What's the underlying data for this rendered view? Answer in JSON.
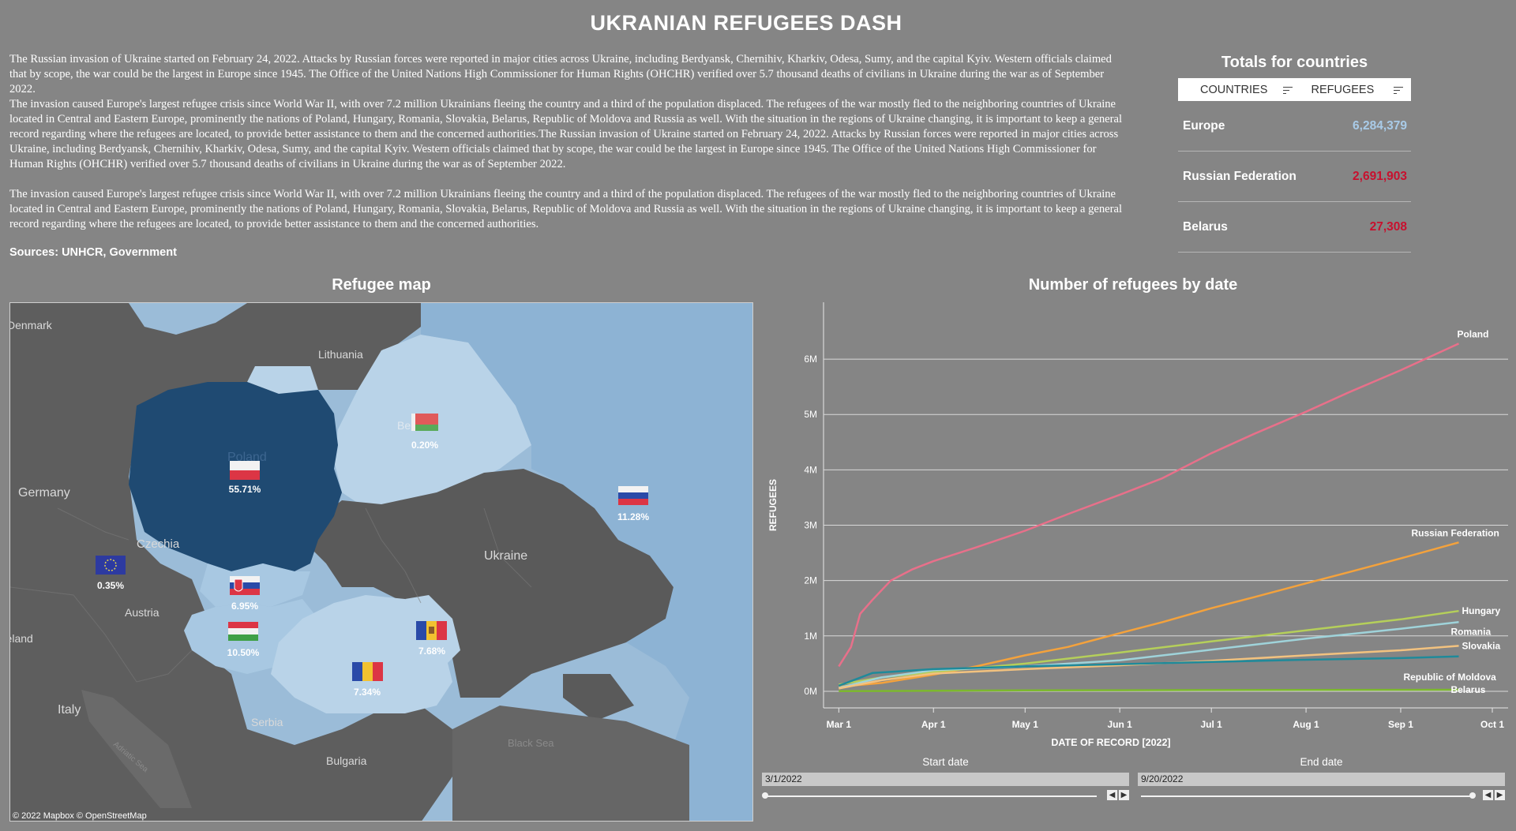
{
  "title": "UKRANIAN REFUGEES DASH",
  "intro": {
    "p1": "The Russian invasion of Ukraine started on February 24, 2022. Attacks by Russian forces were reported in major cities across Ukraine, including Berdyansk, Chernihiv, Kharkiv, Odesa, Sumy, and the capital Kyiv. Western officials claimed that by scope, the war could be the largest in Europe since 1945. The Office of the United Nations High Commissioner for Human Rights (OHCHR) verified over 5.7 thousand deaths of civilians in Ukraine during the war as of September 2022.",
    "p2": "The invasion caused Europe's largest refugee crisis since World War II, with over 7.2 million Ukrainians fleeing the country and a third of the population displaced. The refugees of the war mostly fled to the neighboring countries of Ukraine located in Central and Eastern Europe, prominently the nations of Poland, Hungary, Romania, Slovakia, Belarus, Republic of Moldova and Russia as well. With the situation in the regions of Ukraine changing, it is important to keep a general record regarding where the refugees are located, to provide better assistance to them and the concerned authorities.The Russian invasion of Ukraine started on February 24, 2022. Attacks by Russian forces were reported in major cities across Ukraine, including Berdyansk, Chernihiv, Kharkiv, Odesa, Sumy, and the capital Kyiv. Western officials claimed that by scope, the war could be the largest in Europe since 1945. The Office of the United Nations High Commissioner for Human Rights (OHCHR) verified over 5.7 thousand deaths of civilians in Ukraine during the war as of September 2022.",
    "p3": "The invasion caused Europe's largest refugee crisis since World War II, with over 7.2 million Ukrainians fleeing the country and a third of the population displaced. The refugees of the war mostly fled to the neighboring countries of Ukraine located in Central and Eastern Europe, prominently the nations of Poland, Hungary, Romania, Slovakia, Belarus, Republic of Moldova and Russia as well. With the situation in the regions of Ukraine changing, it is important to keep a general record regarding where the refugees are located, to provide better assistance to them and the concerned authorities.",
    "sources": "Sources: UNHCR, Government"
  },
  "totals": {
    "title": "Totals for countries",
    "col_countries": "COUNTRIES",
    "col_refugees": "REFUGEES",
    "rows": [
      {
        "country": "Europe",
        "value": "6,284,379",
        "color": "#a9cbe8"
      },
      {
        "country": "Russian Federation",
        "value": "2,691,903",
        "color": "#c8102e"
      },
      {
        "country": "Belarus",
        "value": "27,308",
        "color": "#c8102e"
      }
    ]
  },
  "map": {
    "title": "Refugee map",
    "credit": "© 2022 Mapbox  © OpenStreetMap",
    "place_labels": [
      "Denmark",
      "Lithuania",
      "Germany",
      "Poland",
      "Czechia",
      "Ukraine",
      "Austria",
      "Italy",
      "Serbia",
      "Bulgaria",
      "Black Sea",
      "Adriatic Sea",
      "Ireland",
      "Be"
    ],
    "markers": [
      {
        "country": "Poland",
        "flag": "poland-flag-icon",
        "pct": "55.71%"
      },
      {
        "country": "Belarus",
        "flag": "belarus-flag-icon",
        "pct": "0.20%"
      },
      {
        "country": "Russia",
        "flag": "russia-flag-icon",
        "pct": "11.28%"
      },
      {
        "country": "Europe",
        "flag": "eu-flag-icon",
        "pct": "0.35%"
      },
      {
        "country": "Slovakia",
        "flag": "slovakia-flag-icon",
        "pct": "6.95%"
      },
      {
        "country": "Hungary",
        "flag": "hungary-flag-icon",
        "pct": "10.50%"
      },
      {
        "country": "Moldova",
        "flag": "moldova-flag-icon",
        "pct": "7.68%"
      },
      {
        "country": "Romania",
        "flag": "romania-flag-icon",
        "pct": "7.34%"
      }
    ]
  },
  "chart_data": {
    "type": "line",
    "title": "Number of refugees by date",
    "xlabel": "DATE OF RECORD [2022]",
    "ylabel": "REFUGEES",
    "x_ticks": [
      "Mar 1",
      "Apr 1",
      "May 1",
      "Jun 1",
      "Jul 1",
      "Aug 1",
      "Sep 1",
      "Oct 1"
    ],
    "y_ticks": [
      "0M",
      "1M",
      "2M",
      "3M",
      "4M",
      "5M",
      "6M"
    ],
    "xlim": [
      "2022-02-24",
      "2022-10-01"
    ],
    "ylim": [
      -300000,
      6600000
    ],
    "grid": true,
    "series": [
      {
        "name": "Poland",
        "color": "#e8708a",
        "points": [
          [
            "2022-03-01",
            450000
          ],
          [
            "2022-03-05",
            800000
          ],
          [
            "2022-03-08",
            1400000
          ],
          [
            "2022-03-12",
            1650000
          ],
          [
            "2022-03-18",
            2000000
          ],
          [
            "2022-03-25",
            2200000
          ],
          [
            "2022-04-01",
            2350000
          ],
          [
            "2022-04-15",
            2600000
          ],
          [
            "2022-05-01",
            2900000
          ],
          [
            "2022-05-15",
            3200000
          ],
          [
            "2022-06-01",
            3550000
          ],
          [
            "2022-06-15",
            3850000
          ],
          [
            "2022-07-01",
            4300000
          ],
          [
            "2022-07-15",
            4650000
          ],
          [
            "2022-08-01",
            5050000
          ],
          [
            "2022-08-15",
            5400000
          ],
          [
            "2022-09-01",
            5800000
          ],
          [
            "2022-09-20",
            6280000
          ]
        ]
      },
      {
        "name": "Russian Federation",
        "color": "#f4a23c",
        "points": [
          [
            "2022-03-01",
            80000
          ],
          [
            "2022-03-15",
            150000
          ],
          [
            "2022-04-01",
            300000
          ],
          [
            "2022-04-15",
            450000
          ],
          [
            "2022-05-01",
            650000
          ],
          [
            "2022-05-15",
            800000
          ],
          [
            "2022-06-01",
            1050000
          ],
          [
            "2022-06-15",
            1250000
          ],
          [
            "2022-07-01",
            1500000
          ],
          [
            "2022-07-15",
            1700000
          ],
          [
            "2022-08-01",
            1950000
          ],
          [
            "2022-08-15",
            2150000
          ],
          [
            "2022-09-01",
            2400000
          ],
          [
            "2022-09-20",
            2690000
          ]
        ]
      },
      {
        "name": "Hungary",
        "color": "#b5cf5a",
        "points": [
          [
            "2022-03-01",
            120000
          ],
          [
            "2022-03-15",
            250000
          ],
          [
            "2022-04-01",
            350000
          ],
          [
            "2022-05-01",
            500000
          ],
          [
            "2022-06-01",
            700000
          ],
          [
            "2022-07-01",
            900000
          ],
          [
            "2022-08-01",
            1100000
          ],
          [
            "2022-09-01",
            1300000
          ],
          [
            "2022-09-20",
            1450000
          ]
        ]
      },
      {
        "name": "Romania",
        "color": "#9fd3da",
        "points": [
          [
            "2022-03-01",
            60000
          ],
          [
            "2022-03-15",
            250000
          ],
          [
            "2022-04-01",
            380000
          ],
          [
            "2022-05-01",
            450000
          ],
          [
            "2022-06-01",
            560000
          ],
          [
            "2022-07-01",
            750000
          ],
          [
            "2022-08-01",
            950000
          ],
          [
            "2022-09-01",
            1130000
          ],
          [
            "2022-09-20",
            1250000
          ]
        ]
      },
      {
        "name": "Slovakia",
        "color": "#f2c27f",
        "points": [
          [
            "2022-03-01",
            50000
          ],
          [
            "2022-03-15",
            200000
          ],
          [
            "2022-04-01",
            320000
          ],
          [
            "2022-05-01",
            400000
          ],
          [
            "2022-06-01",
            470000
          ],
          [
            "2022-07-01",
            550000
          ],
          [
            "2022-08-01",
            650000
          ],
          [
            "2022-09-01",
            740000
          ],
          [
            "2022-09-20",
            820000
          ]
        ]
      },
      {
        "name": "Republic of Moldova",
        "color": "#1f8a9a",
        "points": [
          [
            "2022-03-01",
            100000
          ],
          [
            "2022-03-12",
            330000
          ],
          [
            "2022-04-01",
            400000
          ],
          [
            "2022-05-01",
            450000
          ],
          [
            "2022-06-01",
            490000
          ],
          [
            "2022-07-01",
            530000
          ],
          [
            "2022-08-01",
            570000
          ],
          [
            "2022-09-01",
            600000
          ],
          [
            "2022-09-20",
            630000
          ]
        ]
      },
      {
        "name": "Belarus",
        "color": "#7db82e",
        "points": [
          [
            "2022-03-01",
            2000
          ],
          [
            "2022-04-01",
            10000
          ],
          [
            "2022-05-01",
            16000
          ],
          [
            "2022-06-01",
            20000
          ],
          [
            "2022-07-01",
            22000
          ],
          [
            "2022-08-01",
            24000
          ],
          [
            "2022-09-01",
            26000
          ],
          [
            "2022-09-20",
            27308
          ]
        ]
      }
    ]
  },
  "filters": {
    "start_label": "Start date",
    "start_value": "3/1/2022",
    "end_label": "End date",
    "end_value": "9/20/2022",
    "start_pos": 0.0,
    "end_pos": 1.0
  },
  "colors": {
    "background": "#858585",
    "map_sea": "#9bbcd8",
    "map_land": "#5a5a5a",
    "poland_fill": "#1f4a72",
    "light_fill": "#b9d3e8",
    "mid_fill": "#a8c8e2"
  }
}
